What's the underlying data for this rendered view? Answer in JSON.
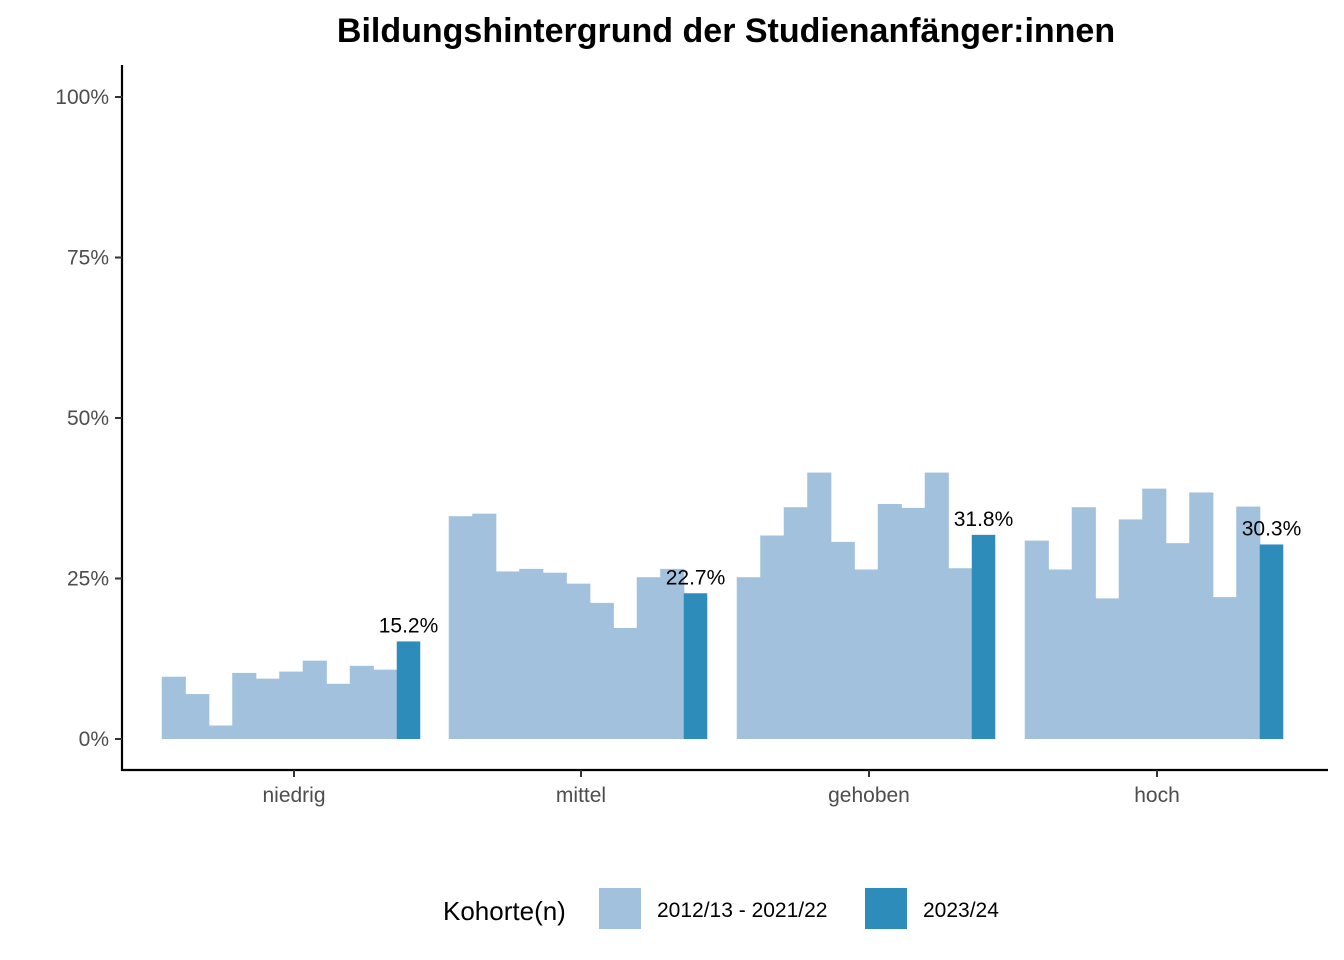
{
  "chart_data": {
    "type": "bar",
    "title": "Bildungshintergrund der Studienanfänger:innen",
    "xlabel": "",
    "ylabel": "",
    "categories": [
      "niedrig",
      "mittel",
      "gehoben",
      "hoch"
    ],
    "ylim": [
      0,
      1
    ],
    "y_ticks": [
      0,
      0.25,
      0.5,
      0.75,
      1
    ],
    "y_tick_labels": [
      "0%",
      "25%",
      "50%",
      "75%",
      "100%"
    ],
    "grid": false,
    "legend": {
      "title": "Kohorte(n)",
      "placement": "bottom",
      "entries": [
        "2012/13 - 2021/22",
        "2023/24"
      ]
    },
    "colors": {
      "historic": "#a1c1dd",
      "current": "#2e8cba"
    },
    "series": [
      {
        "name": "2012/13 - 2021/22",
        "values": [
          [
            0.097,
            0.07,
            0.021,
            0.103,
            0.094,
            0.105,
            0.122,
            0.086,
            0.114,
            0.108
          ],
          [
            0.347,
            0.351,
            0.261,
            0.265,
            0.259,
            0.242,
            0.212,
            0.173,
            0.252,
            0.265
          ],
          [
            0.252,
            0.317,
            0.361,
            0.415,
            0.307,
            0.264,
            0.366,
            0.36,
            0.415,
            0.266
          ],
          [
            0.309,
            0.264,
            0.361,
            0.219,
            0.342,
            0.39,
            0.305,
            0.384,
            0.221,
            0.362
          ]
        ]
      },
      {
        "name": "2023/24",
        "values": [
          0.152,
          0.227,
          0.318,
          0.303
        ],
        "labels": [
          "15.2%",
          "22.7%",
          "31.8%",
          "30.3%"
        ]
      }
    ]
  }
}
